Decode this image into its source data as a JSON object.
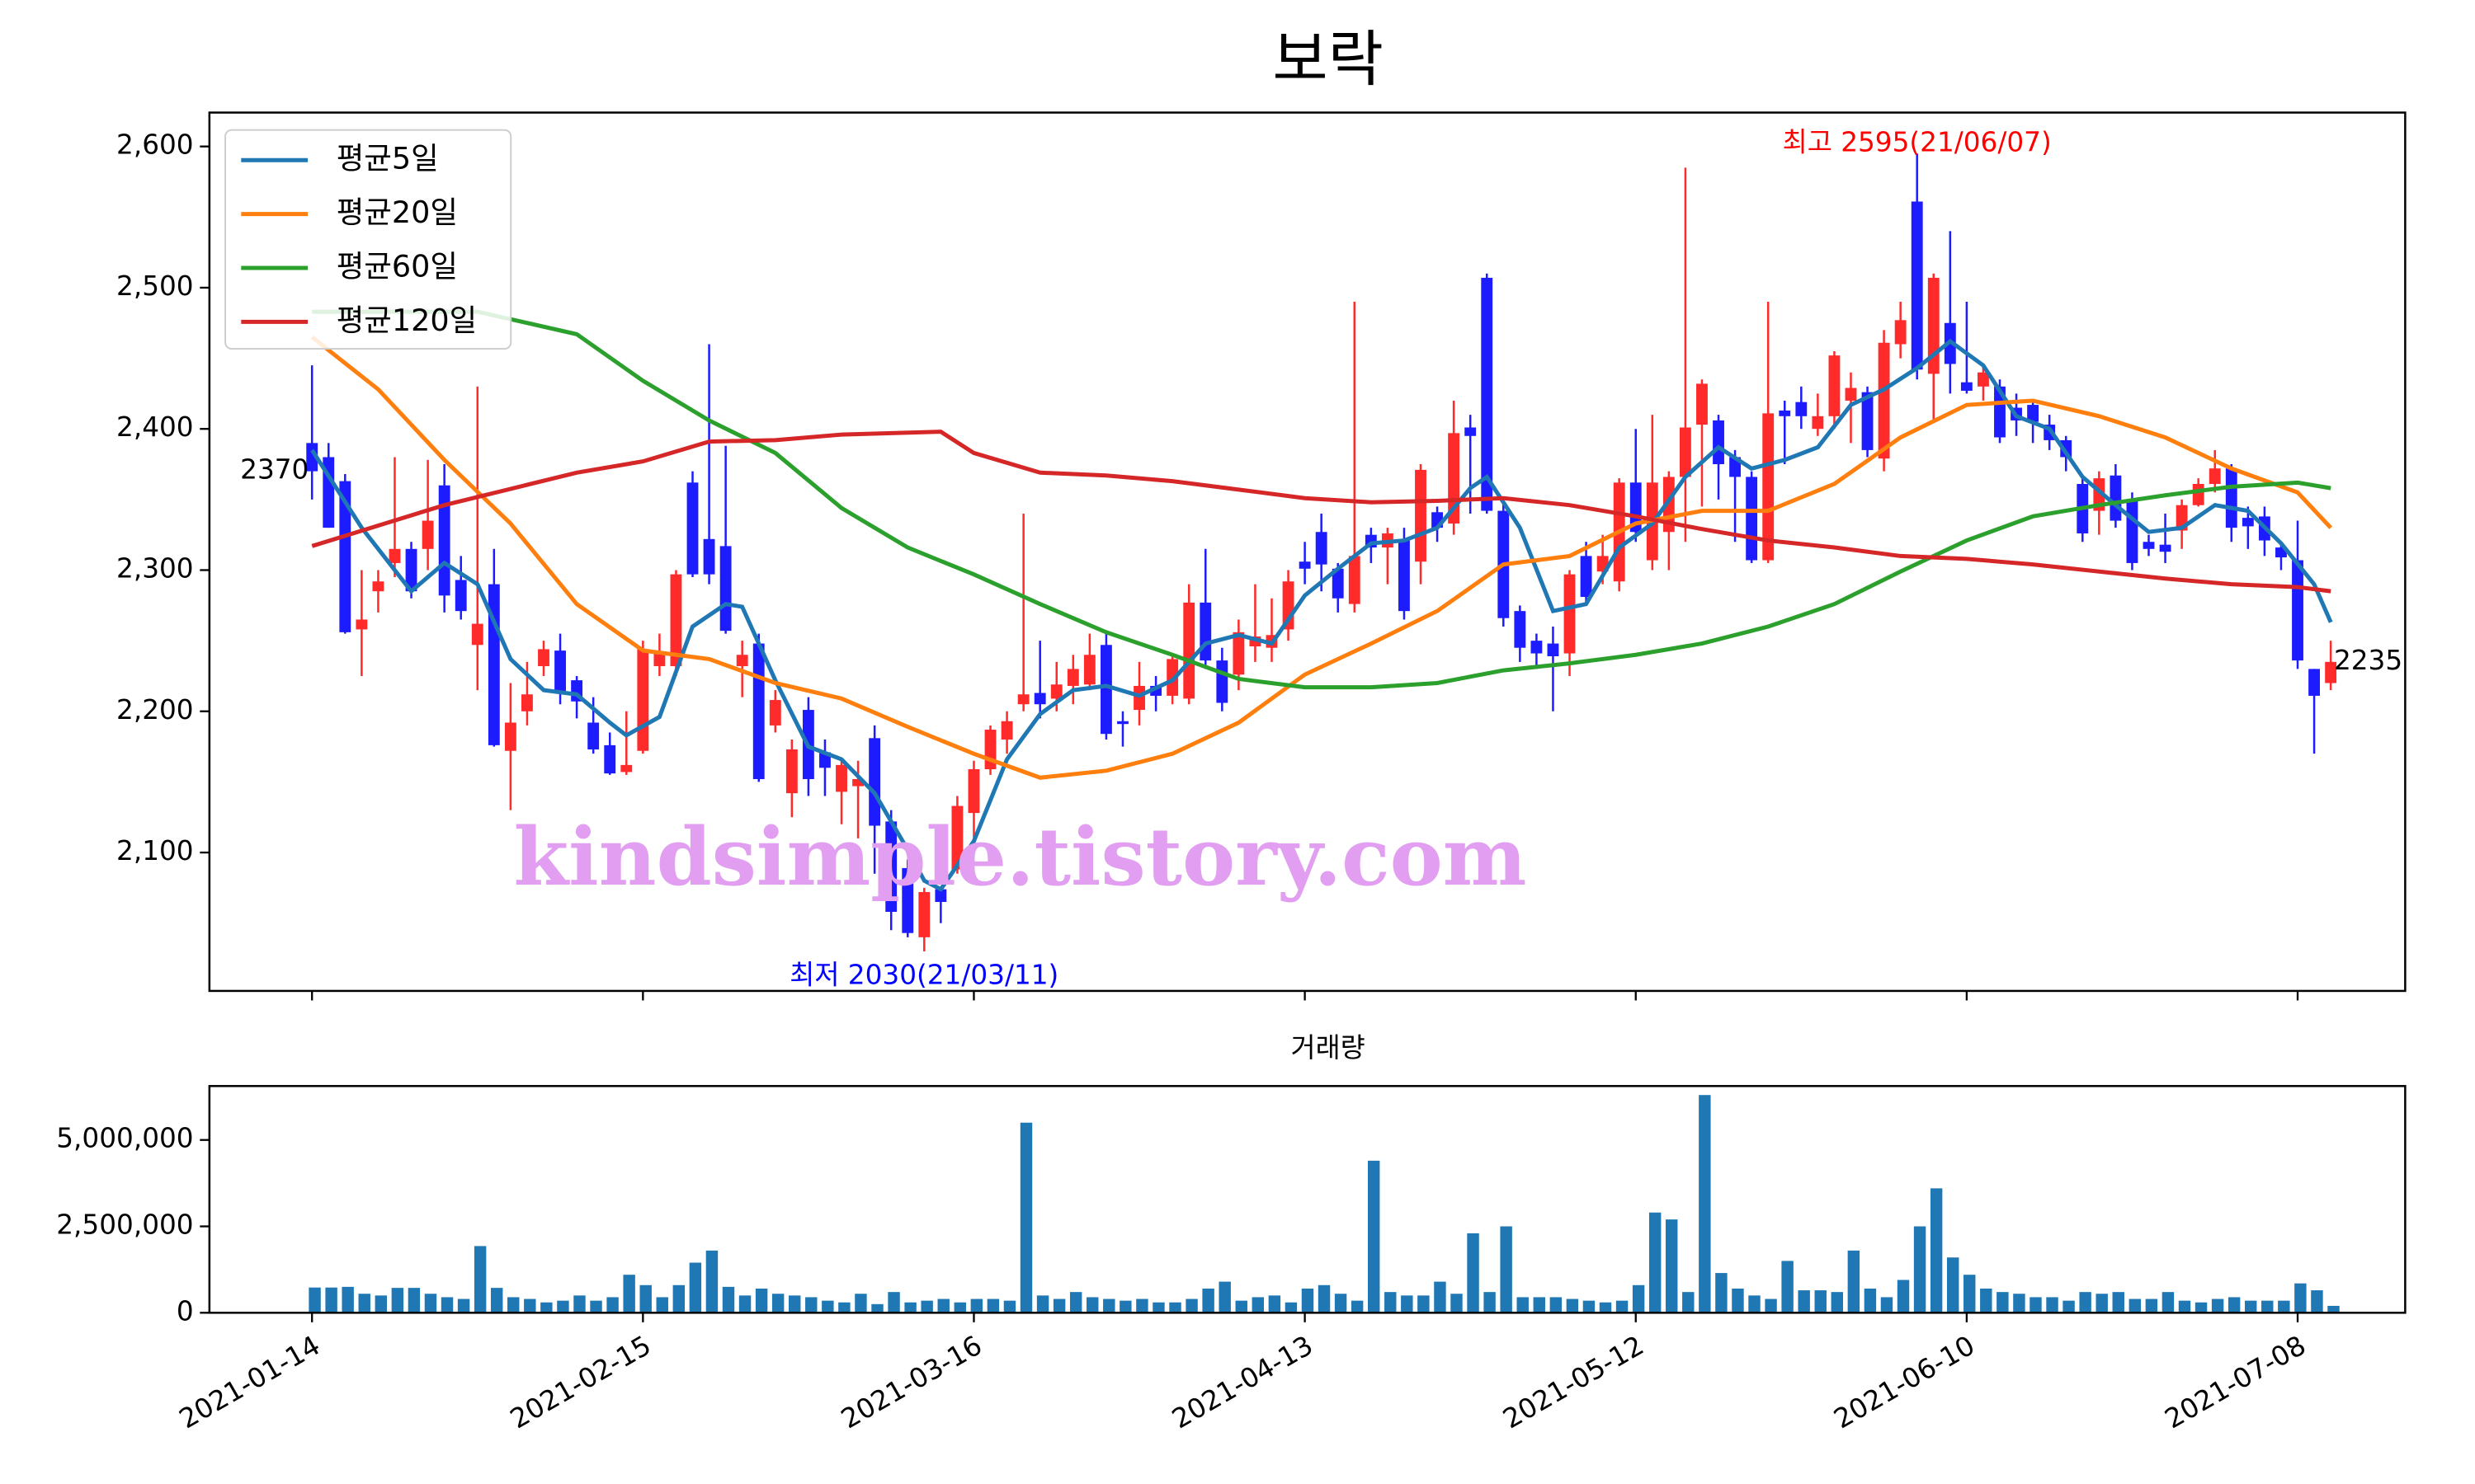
{
  "chart_data": [
    {
      "type": "candlestick",
      "title": "보락",
      "open": [
        2390,
        2380,
        2363,
        2258,
        2285,
        2305,
        2315,
        2315,
        2360,
        2293,
        2247,
        2290,
        2172,
        2200,
        2232,
        2243,
        2222,
        2192,
        2176,
        2157,
        2172,
        2232,
        2232,
        2362,
        2322,
        2317,
        2232,
        2248,
        2190,
        2142,
        2201,
        2171,
        2143,
        2147,
        2181,
        2122,
        2089,
        2040,
        2074,
        2088,
        2128,
        2159,
        2180,
        2205,
        2213,
        2209,
        2218,
        2219,
        2247,
        2193,
        2201,
        2218,
        2211,
        2209,
        2277,
        2236,
        2226,
        2246,
        2245,
        2258,
        2306,
        2327,
        2301,
        2276,
        2325,
        2316,
        2321,
        2306,
        2341,
        2333,
        2401,
        2507,
        2342,
        2271,
        2250,
        2248,
        2241,
        2310,
        2299,
        2292,
        2362,
        2307,
        2327,
        2366,
        2403,
        2406,
        2380,
        2366,
        2307,
        2413,
        2419,
        2400,
        2409,
        2420,
        2426,
        2379,
        2460,
        2561,
        2439,
        2475,
        2433,
        2430,
        2430,
        2415,
        2417,
        2403,
        2392,
        2361,
        2342,
        2367,
        2350,
        2320,
        2318,
        2328,
        2346,
        2361,
        2372,
        2337,
        2338,
        2316,
        2307,
        2230,
        2220
      ],
      "high": [
        2445,
        2390,
        2368,
        2300,
        2300,
        2380,
        2320,
        2378,
        2375,
        2310,
        2430,
        2315,
        2220,
        2235,
        2250,
        2255,
        2225,
        2210,
        2185,
        2200,
        2250,
        2255,
        2300,
        2370,
        2460,
        2388,
        2250,
        2255,
        2215,
        2180,
        2210,
        2180,
        2165,
        2165,
        2190,
        2130,
        2095,
        2075,
        2075,
        2140,
        2165,
        2190,
        2200,
        2340,
        2250,
        2235,
        2240,
        2255,
        2255,
        2200,
        2235,
        2225,
        2240,
        2290,
        2315,
        2245,
        2265,
        2290,
        2280,
        2300,
        2320,
        2340,
        2305,
        2490,
        2330,
        2330,
        2330,
        2375,
        2345,
        2420,
        2410,
        2510,
        2350,
        2275,
        2255,
        2260,
        2300,
        2320,
        2325,
        2365,
        2400,
        2410,
        2370,
        2585,
        2435,
        2410,
        2385,
        2370,
        2490,
        2420,
        2430,
        2425,
        2455,
        2440,
        2430,
        2470,
        2490,
        2595,
        2510,
        2540,
        2490,
        2445,
        2435,
        2425,
        2420,
        2410,
        2395,
        2365,
        2370,
        2375,
        2355,
        2325,
        2340,
        2350,
        2365,
        2385,
        2375,
        2345,
        2345,
        2320,
        2335,
        2230,
        2250
      ],
      "low": [
        2350,
        2330,
        2255,
        2225,
        2270,
        2295,
        2280,
        2300,
        2270,
        2265,
        2215,
        2175,
        2130,
        2190,
        2225,
        2205,
        2195,
        2170,
        2155,
        2155,
        2170,
        2225,
        2225,
        2295,
        2290,
        2255,
        2210,
        2150,
        2185,
        2125,
        2140,
        2140,
        2120,
        2110,
        2085,
        2045,
        2040,
        2030,
        2050,
        2085,
        2110,
        2155,
        2170,
        2200,
        2195,
        2200,
        2205,
        2215,
        2180,
        2175,
        2190,
        2200,
        2205,
        2205,
        2230,
        2200,
        2215,
        2235,
        2235,
        2250,
        2290,
        2285,
        2270,
        2270,
        2305,
        2290,
        2265,
        2290,
        2320,
        2325,
        2340,
        2340,
        2260,
        2235,
        2230,
        2200,
        2225,
        2275,
        2290,
        2285,
        2320,
        2300,
        2300,
        2320,
        2345,
        2350,
        2320,
        2305,
        2305,
        2375,
        2400,
        2395,
        2400,
        2390,
        2380,
        2370,
        2450,
        2435,
        2405,
        2425,
        2425,
        2420,
        2390,
        2395,
        2390,
        2385,
        2370,
        2320,
        2325,
        2330,
        2300,
        2310,
        2305,
        2315,
        2345,
        2355,
        2320,
        2315,
        2310,
        2300,
        2230,
        2170,
        2215
      ],
      "close": [
        2370,
        2330,
        2256,
        2265,
        2292,
        2315,
        2285,
        2335,
        2282,
        2271,
        2262,
        2176,
        2192,
        2212,
        2244,
        2214,
        2207,
        2173,
        2156,
        2162,
        2244,
        2242,
        2297,
        2297,
        2297,
        2257,
        2240,
        2152,
        2208,
        2173,
        2152,
        2160,
        2162,
        2152,
        2119,
        2058,
        2043,
        2072,
        2065,
        2133,
        2159,
        2187,
        2193,
        2212,
        2205,
        2219,
        2230,
        2240,
        2184,
        2191,
        2218,
        2211,
        2237,
        2277,
        2236,
        2206,
        2256,
        2253,
        2254,
        2292,
        2301,
        2304,
        2280,
        2310,
        2316,
        2326,
        2271,
        2371,
        2330,
        2397,
        2395,
        2342,
        2266,
        2245,
        2241,
        2239,
        2297,
        2281,
        2310,
        2362,
        2327,
        2362,
        2366,
        2401,
        2432,
        2375,
        2366,
        2307,
        2411,
        2409,
        2409,
        2409,
        2452,
        2429,
        2385,
        2461,
        2477,
        2442,
        2507,
        2446,
        2427,
        2440,
        2394,
        2406,
        2405,
        2392,
        2380,
        2326,
        2365,
        2335,
        2305,
        2315,
        2313,
        2346,
        2361,
        2372,
        2330,
        2331,
        2321,
        2309,
        2236,
        2211,
        2235
      ],
      "up_color": "#ff2a2a",
      "down_color": "#1c1cff",
      "xlim": [
        -6.2,
        126.5
      ],
      "ylim": [
        2002,
        2624
      ],
      "xticks": [
        0,
        20,
        40,
        60,
        80,
        100,
        120
      ],
      "yticks": [
        {
          "value": 2100,
          "label": "2,100"
        },
        {
          "value": 2200,
          "label": "2,200"
        },
        {
          "value": 2300,
          "label": "2,300"
        },
        {
          "value": 2400,
          "label": "2,400"
        },
        {
          "value": 2500,
          "label": "2,500"
        },
        {
          "value": 2600,
          "label": "2,600"
        }
      ],
      "legend": "upper left",
      "series": [
        {
          "name": "평균5일",
          "color": "#1f77b4",
          "x": [
            0,
            3,
            6,
            8,
            10,
            12,
            14,
            16,
            18,
            19,
            21,
            23,
            25,
            26,
            28,
            30,
            32,
            34,
            36,
            37,
            38,
            40,
            42,
            44,
            46,
            48,
            50,
            52,
            54,
            56,
            58,
            60,
            62,
            64,
            66,
            68,
            70,
            71,
            73,
            75,
            77,
            79,
            81,
            83,
            85,
            87,
            89,
            91,
            93,
            95,
            97,
            99,
            101,
            103,
            105,
            107,
            109,
            111,
            113,
            115,
            117,
            119,
            121,
            122
          ],
          "values": [
            2385,
            2330,
            2285,
            2305,
            2290,
            2237,
            2215,
            2212,
            2192,
            2183,
            2196,
            2260,
            2276,
            2274,
            2222,
            2175,
            2166,
            2142,
            2102,
            2080,
            2074,
            2108,
            2166,
            2198,
            2215,
            2218,
            2211,
            2222,
            2248,
            2254,
            2248,
            2282,
            2301,
            2319,
            2321,
            2330,
            2358,
            2366,
            2330,
            2271,
            2276,
            2316,
            2333,
            2366,
            2387,
            2372,
            2378,
            2387,
            2417,
            2428,
            2443,
            2462,
            2445,
            2409,
            2400,
            2366,
            2346,
            2327,
            2330,
            2346,
            2342,
            2319,
            2290,
            2263
          ]
        },
        {
          "name": "평균20일",
          "color": "#ff7f0e",
          "x": [
            0,
            4,
            8,
            12,
            16,
            20,
            24,
            28,
            32,
            36,
            40,
            44,
            48,
            52,
            56,
            60,
            64,
            68,
            72,
            76,
            80,
            84,
            88,
            92,
            96,
            100,
            104,
            108,
            112,
            116,
            120,
            122
          ],
          "values": [
            2465,
            2428,
            2378,
            2333,
            2276,
            2243,
            2237,
            2220,
            2209,
            2189,
            2170,
            2153,
            2158,
            2170,
            2192,
            2226,
            2248,
            2271,
            2304,
            2310,
            2333,
            2342,
            2342,
            2361,
            2394,
            2417,
            2420,
            2409,
            2394,
            2372,
            2355,
            2330
          ]
        },
        {
          "name": "평균60일",
          "color": "#2ca02c",
          "x": [
            0,
            10,
            16,
            20,
            24,
            28,
            32,
            36,
            40,
            44,
            48,
            52,
            56,
            60,
            64,
            68,
            72,
            76,
            80,
            84,
            88,
            92,
            96,
            100,
            104,
            108,
            112,
            116,
            120,
            122
          ],
          "values": [
            2483,
            2483,
            2467,
            2434,
            2406,
            2383,
            2344,
            2316,
            2297,
            2276,
            2256,
            2240,
            2223,
            2217,
            2217,
            2220,
            2229,
            2234,
            2240,
            2248,
            2260,
            2276,
            2299,
            2321,
            2338,
            2346,
            2353,
            2359,
            2362,
            2358
          ]
        },
        {
          "name": "평균120일",
          "color": "#d62728",
          "x": [
            0,
            8,
            16,
            20,
            24,
            28,
            32,
            38,
            40,
            44,
            48,
            52,
            56,
            60,
            64,
            68,
            72,
            76,
            80,
            84,
            88,
            92,
            96,
            100,
            104,
            108,
            112,
            116,
            120,
            122
          ],
          "values": [
            2317,
            2346,
            2369,
            2377,
            2391,
            2392,
            2396,
            2398,
            2383,
            2369,
            2367,
            2363,
            2357,
            2351,
            2348,
            2349,
            2351,
            2346,
            2338,
            2329,
            2321,
            2316,
            2310,
            2308,
            2304,
            2299,
            2294,
            2290,
            2288,
            2285
          ]
        }
      ],
      "annotations": [
        {
          "text": "최고 2595(21/06/07)",
          "color": "#ff0000"
        },
        {
          "text": "최저 2030(21/03/11)",
          "color": "#0000ff"
        }
      ],
      "watermark": "kindsimple.tistory.com"
    },
    {
      "type": "bar",
      "title": "거래량",
      "color": "#1f77b4",
      "values": [
        730000,
        730000,
        750000,
        550000,
        500000,
        720000,
        720000,
        550000,
        450000,
        400000,
        1930000,
        720000,
        450000,
        400000,
        300000,
        350000,
        500000,
        350000,
        450000,
        1100000,
        800000,
        450000,
        800000,
        1450000,
        1800000,
        750000,
        500000,
        700000,
        550000,
        500000,
        450000,
        350000,
        300000,
        550000,
        250000,
        600000,
        300000,
        350000,
        400000,
        300000,
        400000,
        400000,
        350000,
        5500000,
        500000,
        400000,
        600000,
        450000,
        400000,
        350000,
        400000,
        300000,
        300000,
        400000,
        700000,
        900000,
        350000,
        450000,
        500000,
        300000,
        700000,
        800000,
        550000,
        350000,
        4400000,
        600000,
        500000,
        500000,
        900000,
        550000,
        2300000,
        600000,
        2500000,
        450000,
        450000,
        450000,
        400000,
        350000,
        300000,
        350000,
        800000,
        2900000,
        2700000,
        600000,
        6300000,
        1150000,
        700000,
        500000,
        400000,
        1500000,
        650000,
        650000,
        600000,
        1800000,
        700000,
        450000,
        950000,
        2500000,
        3600000,
        1600000,
        1100000,
        700000,
        600000,
        550000,
        450000,
        450000,
        350000,
        600000,
        550000,
        600000,
        400000,
        400000,
        600000,
        350000,
        300000,
        400000,
        450000,
        350000,
        350000,
        350000,
        850000,
        650000,
        200000
      ],
      "xlim": [
        -6.2,
        126.5
      ],
      "ylim": [
        0,
        6560000
      ],
      "yticks": [
        0,
        {
          "value": 2500000,
          "label": "2,500,000"
        },
        {
          "value": 5000000,
          "label": "5,000,000"
        }
      ],
      "xticks": [
        {
          "value": 0,
          "label": "2021-01-14"
        },
        {
          "value": 20,
          "label": "2021-02-15"
        },
        {
          "value": 40,
          "label": "2021-03-16"
        },
        {
          "value": 60,
          "label": "2021-04-13"
        },
        {
          "value": 80,
          "label": "2021-05-12"
        },
        {
          "value": 100,
          "label": "2021-06-10"
        },
        {
          "value": 120,
          "label": "2021-07-08"
        }
      ]
    }
  ]
}
